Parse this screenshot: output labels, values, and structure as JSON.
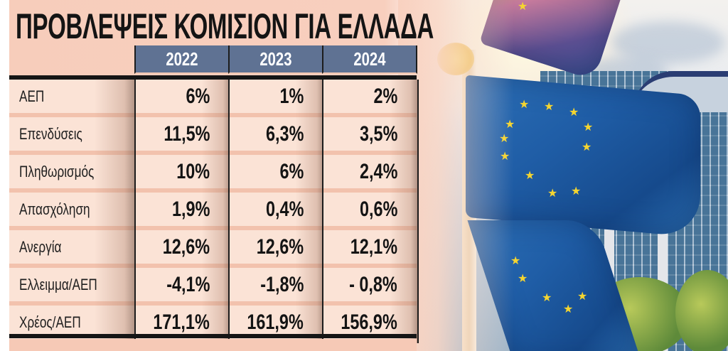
{
  "title": "ΠΡΟΒΛΕΨΕΙΣ ΚΟΜΙΣΙΟΝ ΓΙΑ ΕΛΛΑΔΑ",
  "colors": {
    "panel_background": "#f8cfbe",
    "header_fill": "#5f7293",
    "header_text": "#ffffff",
    "row_band": "#fbe3d6",
    "row_stripe": "#f2c2ad",
    "rule": "#151515",
    "eu_blue": "#1f5da6",
    "eu_star": "#f5d530"
  },
  "table": {
    "columns": [
      "2022",
      "2023",
      "2024"
    ],
    "rows": [
      {
        "label": "ΑΕΠ",
        "values": [
          "6%",
          "1%",
          "2%"
        ]
      },
      {
        "label": "Επενδύσεις",
        "values": [
          "11,5%",
          "6,3%",
          "3,5%"
        ]
      },
      {
        "label": "Πληθωρισμός",
        "values": [
          "10%",
          "6%",
          "2,4%"
        ]
      },
      {
        "label": "Απασχόληση",
        "values": [
          "1,9%",
          "0,4%",
          "0,6%"
        ]
      },
      {
        "label": "Ανεργία",
        "values": [
          "12,6%",
          "12,6%",
          "12,1%"
        ]
      },
      {
        "label": "Ελλειμμα/ΑΕΠ",
        "values": [
          "-4,1%",
          "-1,8%",
          "- 0,8%"
        ]
      },
      {
        "label": "Χρέος/ΑΕΠ",
        "values": [
          "171,1%",
          "161,9%",
          "156,9%"
        ]
      }
    ]
  },
  "photo": {
    "subject": "eu-flags-in-front-of-building",
    "icons": [
      "eu-flag-icon",
      "star-icon"
    ]
  },
  "chart_data": {
    "type": "table",
    "title": "ΠΡΟΒΛΕΨΕΙΣ ΚΟΜΙΣΙΟΝ ΓΙΑ ΕΛΛΑΔΑ",
    "categories": [
      "ΑΕΠ",
      "Επενδύσεις",
      "Πληθωρισμός",
      "Απασχόληση",
      "Ανεργία",
      "Ελλειμμα/ΑΕΠ",
      "Χρέος/ΑΕΠ"
    ],
    "series": [
      {
        "name": "2022",
        "values": [
          6,
          11.5,
          10,
          1.9,
          12.6,
          -4.1,
          171.1
        ]
      },
      {
        "name": "2023",
        "values": [
          1,
          6.3,
          6,
          0.4,
          12.6,
          -1.8,
          161.9
        ]
      },
      {
        "name": "2024",
        "values": [
          2,
          3.5,
          2.4,
          0.6,
          12.1,
          -0.8,
          156.9
        ]
      }
    ],
    "unit": "%",
    "xlabel": "",
    "ylabel": ""
  }
}
